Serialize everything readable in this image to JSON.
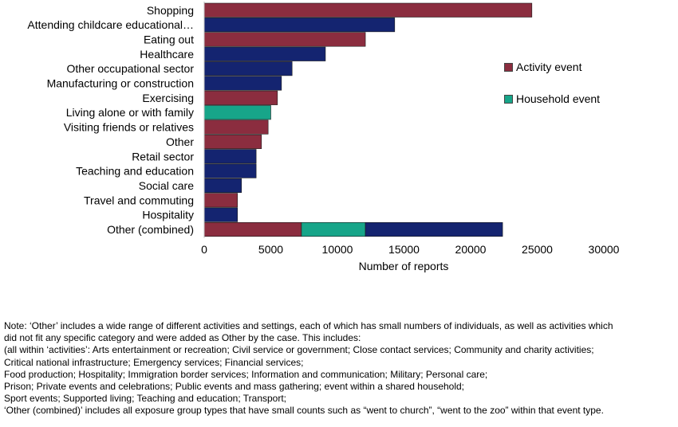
{
  "chart_data": {
    "type": "bar",
    "orientation": "horizontal",
    "stacked": true,
    "xlabel": "Number of reports",
    "xlim": [
      0,
      30000
    ],
    "xticks": [
      0,
      5000,
      10000,
      15000,
      20000,
      25000,
      30000
    ],
    "grid": false,
    "legend_position": "right",
    "categories": [
      "Shopping",
      "Attending childcare educational…",
      "Eating out",
      "Healthcare",
      "Other occupational sector",
      "Manufacturing or construction",
      "Exercising",
      "Living alone or with family",
      "Visiting friends or relatives",
      "Other",
      "Retail sector",
      "Teaching and education",
      "Social care",
      "Travel and commuting",
      "Hospitality",
      "Other (combined)"
    ],
    "series": [
      {
        "name": "Activity event",
        "color": "#8b2d3f",
        "values": [
          24600,
          0,
          12100,
          0,
          0,
          0,
          5500,
          0,
          4800,
          4300,
          0,
          0,
          0,
          2500,
          0,
          7300
        ]
      },
      {
        "name": "Household event",
        "color": "#17a589",
        "values": [
          0,
          0,
          0,
          0,
          0,
          0,
          0,
          5000,
          0,
          0,
          0,
          0,
          0,
          0,
          0,
          4800
        ]
      },
      {
        "name": "",
        "color": "#142470",
        "values": [
          0,
          14300,
          0,
          9100,
          6600,
          5800,
          0,
          0,
          0,
          0,
          3900,
          3900,
          2800,
          0,
          2500,
          10300
        ]
      }
    ]
  },
  "legend": [
    {
      "label": "Activity event",
      "color": "#8b2d3f"
    },
    {
      "label": "Household event",
      "color": "#17a589"
    }
  ],
  "note": [
    "Note: ‘Other’ includes a wide range of different activities and settings, each of which has small numbers of individuals, as well as activities which",
    "did not fit any specific category and were added as Other by the case. This includes:",
    "(all within ‘activities’: Arts entertainment or recreation; Civil service or government; Close contact services; Community and charity activities;",
    "Critical national infrastructure; Emergency services; Financial services;",
    "Food production; Hospitality; Immigration border services; Information and communication; Military; Personal care;",
    "Prison; Private events and celebrations; Public events and mass gathering; event within a shared household;",
    "Sport events; Supported living; Teaching and education; Transport;",
    "‘Other (combined)’ includes all exposure group types that have small counts such as “went to church”, “went to the zoo” within that event type."
  ]
}
